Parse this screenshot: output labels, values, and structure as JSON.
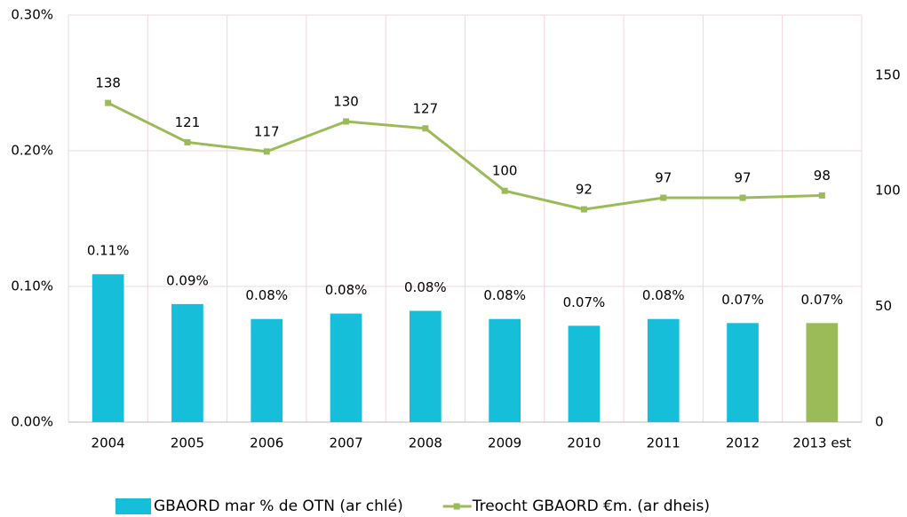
{
  "chart_data": {
    "type": "bar-line",
    "categories": [
      "2004",
      "2005",
      "2006",
      "2007",
      "2008",
      "2009",
      "2010",
      "2011",
      "2012",
      "2013 est"
    ],
    "series": [
      {
        "name": "GBAORD mar % de OTN (ar chlé)",
        "type": "bar",
        "color": "#17bed9",
        "colors": [
          "#17bed9",
          "#17bed9",
          "#17bed9",
          "#17bed9",
          "#17bed9",
          "#17bed9",
          "#17bed9",
          "#17bed9",
          "#17bed9",
          "#9bbb59"
        ],
        "values": [
          0.109,
          0.087,
          0.076,
          0.08,
          0.082,
          0.076,
          0.071,
          0.076,
          0.073,
          0.073
        ],
        "value_labels": [
          "0.11%",
          "0.09%",
          "0.08%",
          "0.08%",
          "0.08%",
          "0.08%",
          "0.07%",
          "0.08%",
          "0.07%",
          "0.07%"
        ]
      },
      {
        "name": "Treocht GBAORD €m. (ar dheis)",
        "type": "line",
        "axis": "y2",
        "color": "#9bbb59",
        "values": [
          138,
          121,
          117,
          130,
          127,
          100,
          92,
          97,
          97,
          98
        ]
      }
    ],
    "ylim": [
      0,
      0.3
    ],
    "yticks": [
      {
        "value": 0,
        "label": "0.00%"
      },
      {
        "value": 0.1,
        "label": "0.10%"
      },
      {
        "value": 0.2,
        "label": "0.20%"
      },
      {
        "value": 0.3,
        "label": "0.30%"
      }
    ],
    "y2lim": [
      0,
      176
    ],
    "y2ticks": [
      0,
      50,
      100,
      150
    ],
    "grid": true,
    "legend": "bottom"
  }
}
